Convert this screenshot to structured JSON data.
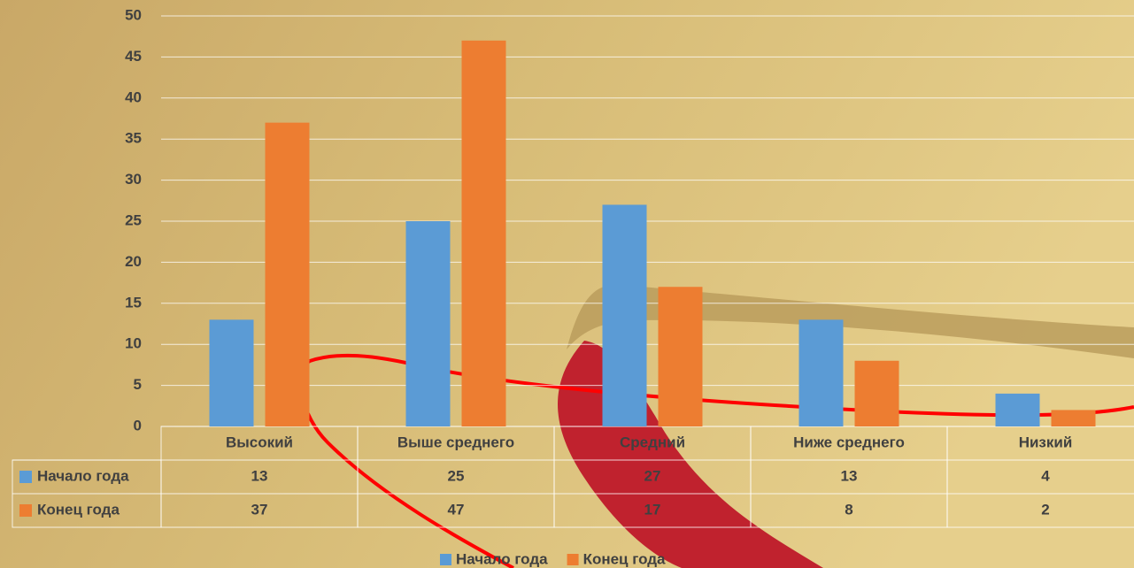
{
  "chart_data": {
    "type": "bar",
    "categories": [
      "Высокий",
      "Выше среднего",
      "Средний",
      "Ниже среднего",
      "Низкий"
    ],
    "series": [
      {
        "name": "Начало года",
        "color": "#5b9bd5",
        "values": [
          13,
          25,
          27,
          13,
          4
        ]
      },
      {
        "name": "Конец года",
        "color": "#ed7d31",
        "values": [
          37,
          47,
          17,
          8,
          2
        ]
      }
    ],
    "ylim": [
      0,
      50
    ],
    "yticks": [
      0,
      5,
      10,
      15,
      20,
      25,
      30,
      35,
      40,
      45,
      50
    ],
    "grid": true
  }
}
